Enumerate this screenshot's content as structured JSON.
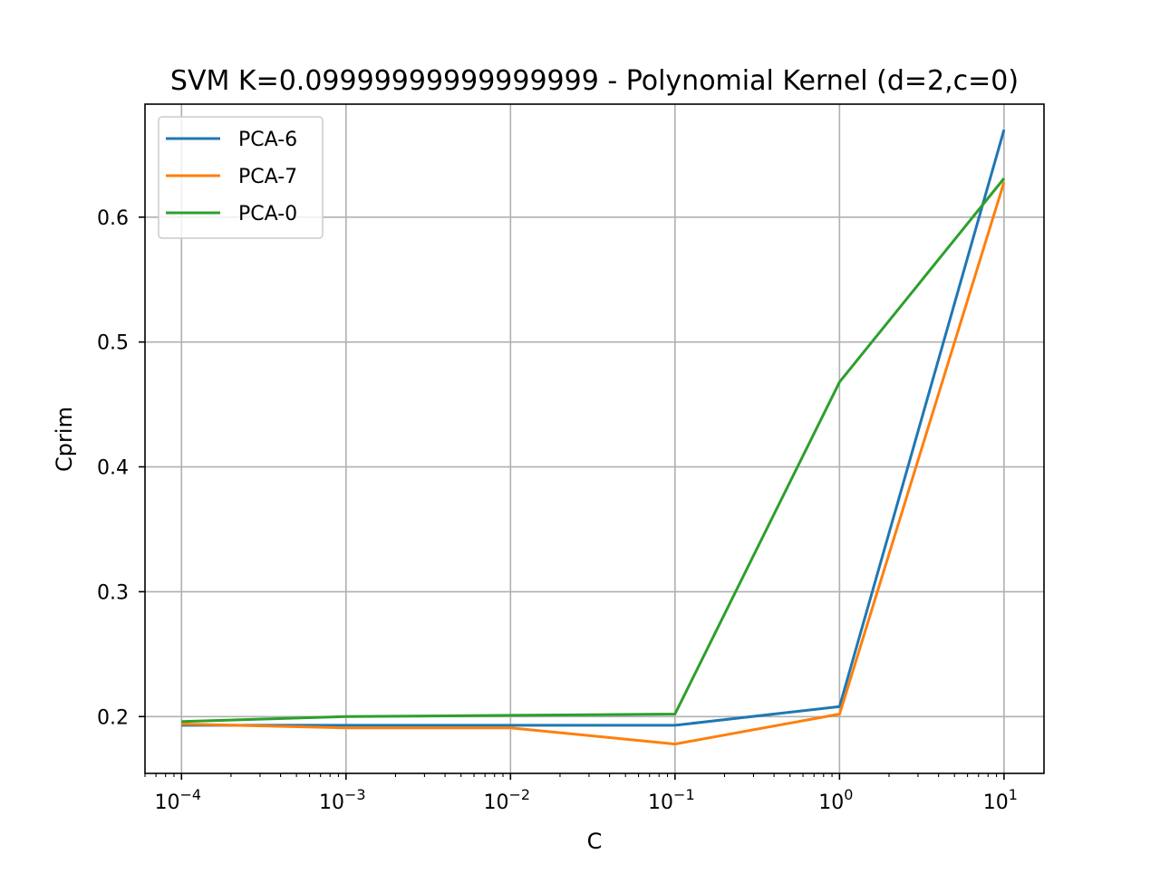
{
  "chart_data": {
    "type": "line",
    "title": "SVM K=0.09999999999999999 - Polynomial Kernel (d=2,c=0)",
    "xlabel": "C",
    "ylabel": "Cprim",
    "xscale": "log",
    "x": [
      0.0001,
      0.001,
      0.01,
      0.1,
      1,
      10
    ],
    "xlim": [
      6e-05,
      17.5
    ],
    "ylim": [
      0.1545,
      0.6905
    ],
    "grid": true,
    "legend_position": "top-left",
    "x_ticks": [
      {
        "base": "10",
        "exp": "−4",
        "value": 0.0001
      },
      {
        "base": "10",
        "exp": "−3",
        "value": 0.001
      },
      {
        "base": "10",
        "exp": "−2",
        "value": 0.01
      },
      {
        "base": "10",
        "exp": "−1",
        "value": 0.1
      },
      {
        "base": "10",
        "exp": "0",
        "value": 1
      },
      {
        "base": "10",
        "exp": "1",
        "value": 10
      }
    ],
    "y_ticks": [
      {
        "label": "0.2",
        "value": 0.2
      },
      {
        "label": "0.3",
        "value": 0.3
      },
      {
        "label": "0.4",
        "value": 0.4
      },
      {
        "label": "0.5",
        "value": 0.5
      },
      {
        "label": "0.6",
        "value": 0.6
      }
    ],
    "series": [
      {
        "name": "PCA-6",
        "color": "#1f77b4",
        "values": [
          0.193,
          0.193,
          0.193,
          0.193,
          0.208,
          0.67
        ]
      },
      {
        "name": "PCA-7",
        "color": "#ff7f0e",
        "values": [
          0.194,
          0.191,
          0.191,
          0.178,
          0.202,
          0.628
        ]
      },
      {
        "name": "PCA-0",
        "color": "#2ca02c",
        "values": [
          0.196,
          0.2,
          0.201,
          0.202,
          0.468,
          0.631
        ]
      }
    ]
  }
}
